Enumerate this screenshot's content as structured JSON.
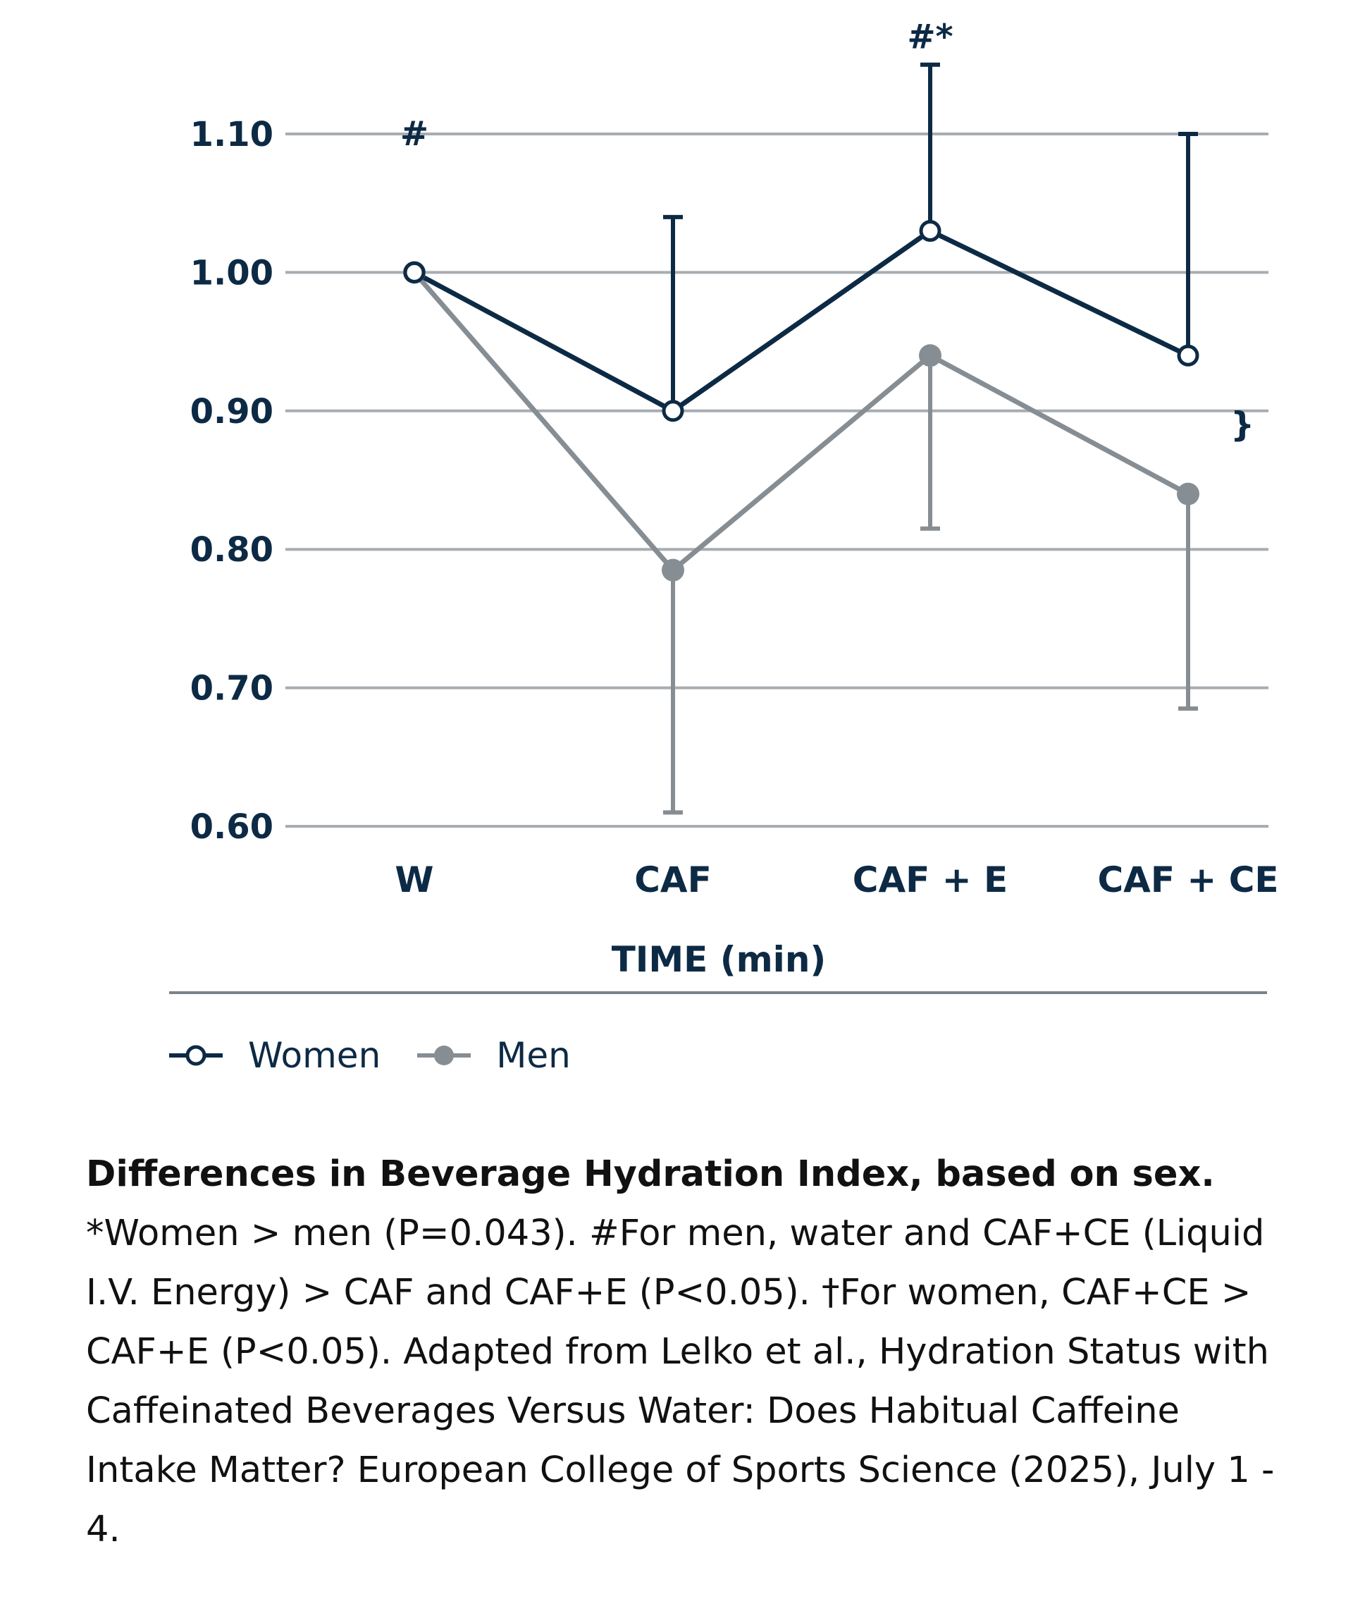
{
  "chart_data": {
    "type": "line",
    "title": "",
    "xlabel": "TIME (min)",
    "ylabel": "",
    "categories": [
      "W",
      "CAF",
      "CAF + E",
      "CAF + CE"
    ],
    "ylim": [
      0.6,
      1.1
    ],
    "yticks": [
      0.6,
      0.7,
      0.8,
      0.9,
      1.0,
      1.1
    ],
    "ytick_labels": [
      "0.60",
      "0.70",
      "0.80",
      "0.90",
      "1.00",
      "1.10"
    ],
    "grid": true,
    "legend_position": "bottom-left",
    "series": [
      {
        "name": "Women",
        "marker": "open-circle",
        "color": "#0d2a45",
        "values": [
          1.0,
          0.9,
          1.03,
          0.94
        ],
        "error_upper": [
          null,
          1.04,
          1.15,
          1.1
        ],
        "error_lower": [
          null,
          null,
          null,
          null
        ]
      },
      {
        "name": "Men",
        "marker": "filled-circle",
        "color": "#868d93",
        "values": [
          1.0,
          0.785,
          0.94,
          0.84
        ],
        "error_upper": [
          null,
          null,
          null,
          null
        ],
        "error_lower": [
          null,
          0.61,
          0.815,
          0.685
        ]
      }
    ],
    "annotations": [
      {
        "text": "#",
        "category": "W",
        "y": 1.1
      },
      {
        "text": "#*",
        "category": "CAF + E",
        "y": 1.17
      },
      {
        "text": "}",
        "category": "CAF + CE",
        "y": 0.89,
        "position": "right"
      }
    ]
  },
  "caption": {
    "title": "Differences in Beverage Hydration Index, based on sex.",
    "body": "*Women > men (P=0.043). #For men, water and CAF+CE (Liquid I.V. Energy) > CAF and CAF+E (P<0.05). †For women, CAF+CE > CAF+E (P<0.05). Adapted from Lelko et al., Hydration Status with Caffeinated Beverages Versus Water: Does Habitual Caffeine Intake Matter? European College of Sports Science (2025), July 1 - 4."
  },
  "colors": {
    "women": "#0d2a45",
    "men": "#868d93",
    "grid": "#a7adb2",
    "text": "#0d2a45"
  }
}
